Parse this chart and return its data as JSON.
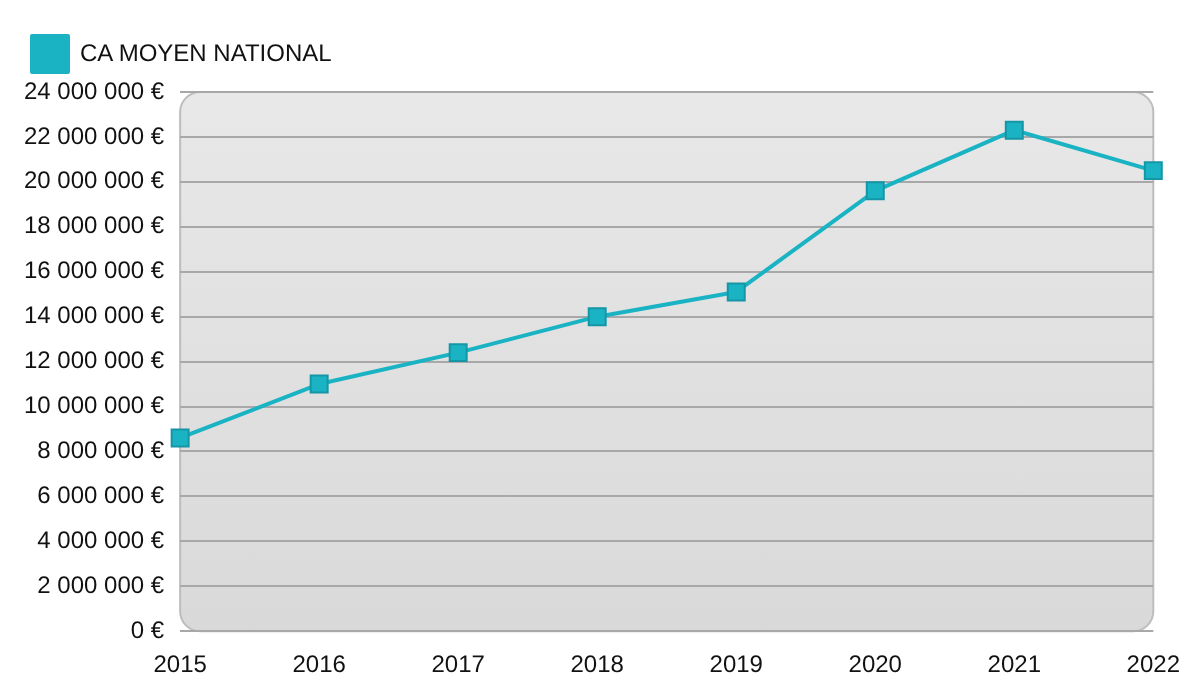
{
  "chart_data": {
    "type": "line",
    "categories": [
      "2015",
      "2016",
      "2017",
      "2018",
      "2019",
      "2020",
      "2021",
      "2022"
    ],
    "series": [
      {
        "name": "CA MOYEN NATIONAL",
        "color": "#1ab3c4",
        "values": [
          8600000,
          11000000,
          12400000,
          14000000,
          15100000,
          19600000,
          22300000,
          20500000
        ]
      }
    ],
    "ylim": [
      0,
      24000000
    ],
    "yticks": [
      {
        "value": 0,
        "label": "0 €"
      },
      {
        "value": 2000000,
        "label": "2 000 000 €"
      },
      {
        "value": 4000000,
        "label": "4 000 000 €"
      },
      {
        "value": 6000000,
        "label": "6 000 000 €"
      },
      {
        "value": 8000000,
        "label": "8 000 000 €"
      },
      {
        "value": 10000000,
        "label": "10 000 000 €"
      },
      {
        "value": 12000000,
        "label": "12 000 000 €"
      },
      {
        "value": 14000000,
        "label": "14 000 000 €"
      },
      {
        "value": 16000000,
        "label": "16 000 000 €"
      },
      {
        "value": 18000000,
        "label": "18 000 000 €"
      },
      {
        "value": 20000000,
        "label": "20 000 000 €"
      },
      {
        "value": 22000000,
        "label": "22 000 000 €"
      },
      {
        "value": 24000000,
        "label": "24 000 000 €"
      }
    ],
    "grid": "y",
    "legend": "top left",
    "marker": "square",
    "line_style": "solid"
  }
}
